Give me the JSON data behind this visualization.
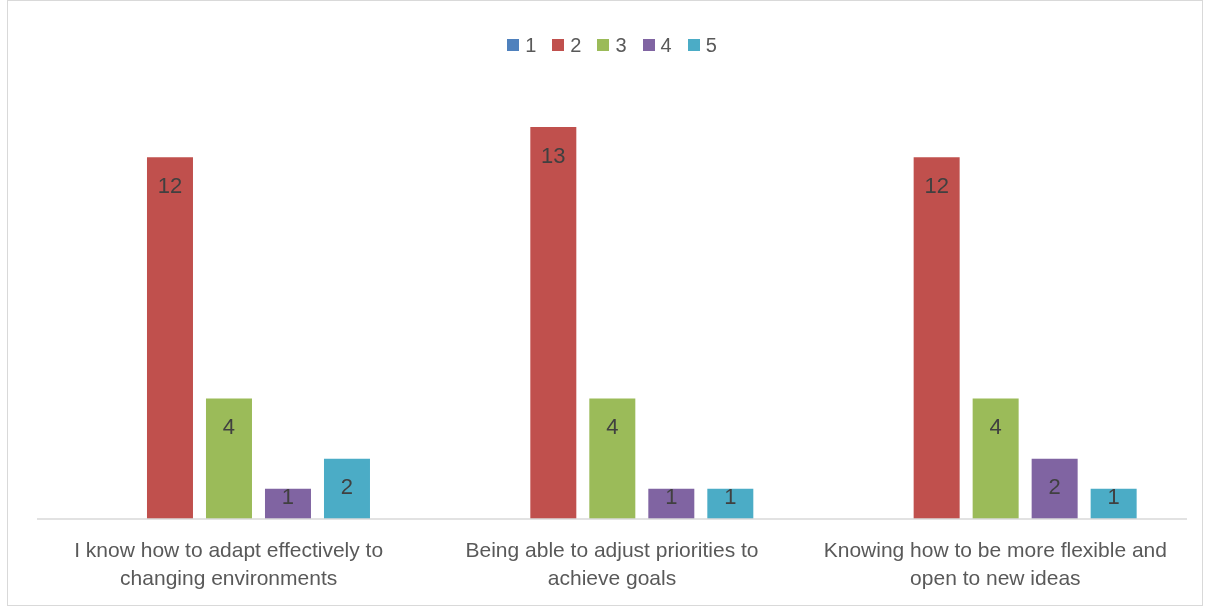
{
  "chart_data": {
    "type": "bar",
    "categories": [
      "I know how to adapt effectively to changing environments",
      "Being able to adjust priorities to achieve goals",
      "Knowing how to be more flexible and open to new ideas"
    ],
    "series": [
      {
        "name": "1",
        "color": "#4f81bd",
        "values": [
          null,
          null,
          null
        ]
      },
      {
        "name": "2",
        "color": "#c0504d",
        "values": [
          12,
          13,
          12
        ]
      },
      {
        "name": "3",
        "color": "#9bbb59",
        "values": [
          4,
          4,
          4
        ]
      },
      {
        "name": "4",
        "color": "#8064a2",
        "values": [
          1,
          1,
          2
        ]
      },
      {
        "name": "5",
        "color": "#4bacc6",
        "values": [
          2,
          1,
          1
        ]
      }
    ],
    "data_labels": true,
    "legend": "top",
    "tick_labels": "x"
  }
}
